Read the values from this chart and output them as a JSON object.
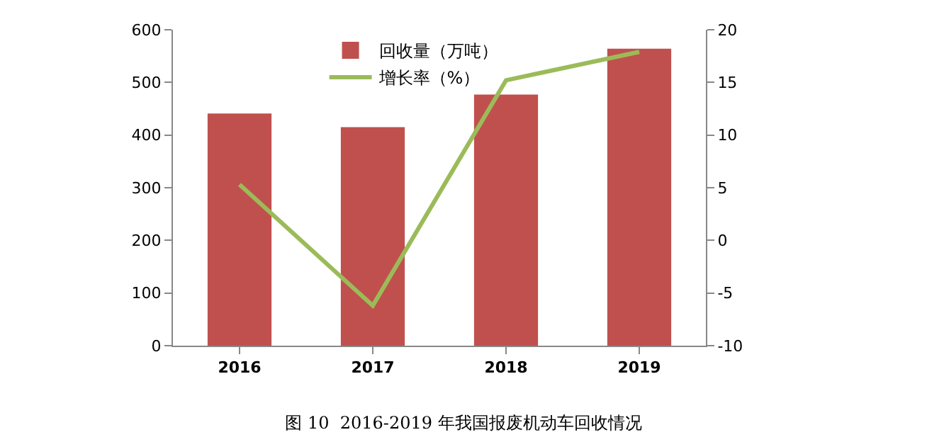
{
  "chart_data": {
    "type": "bar",
    "title": "图 10  2016-2019 年我国报废机动车回收情况",
    "categories": [
      "2016",
      "2017",
      "2018",
      "2019"
    ],
    "series": [
      {
        "name": "回收量（万吨）",
        "color": "#c0504d",
        "values": [
          441,
          415,
          477,
          564
        ]
      },
      {
        "name": "增长率（%）",
        "type": "line",
        "axis": "y2",
        "color": "#9bbb59",
        "values": [
          5.3,
          -6.2,
          15.2,
          17.9
        ],
        "marker": "none",
        "line_style": "solid"
      }
    ],
    "ylim": [
      0,
      600
    ],
    "yticks": [
      0,
      100,
      200,
      300,
      400,
      500,
      600
    ],
    "y2lim": [
      -10,
      20
    ],
    "y2ticks": [
      -10,
      -5,
      0,
      5,
      10,
      15,
      20
    ],
    "grid": false,
    "legend": "top"
  }
}
